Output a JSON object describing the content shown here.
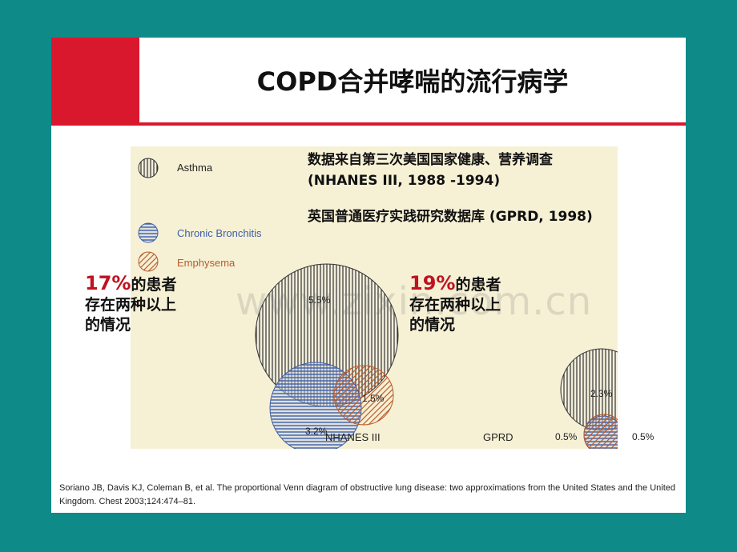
{
  "title": "COPD合并哮喘的流行病学",
  "legend": [
    {
      "label": "Asthma"
    },
    {
      "label": "Chronic Bronchitis"
    },
    {
      "label": "Emphysema"
    }
  ],
  "colors": {
    "asthma": "#333333",
    "bronchitis": "#3e5fa8",
    "emphysema": "#b85a2a",
    "accent": "#c0121f",
    "teal": "#0e8a89"
  },
  "sources": {
    "line1": "数据来自第三次美国国家健康、营养调查",
    "line2": "(NHANES III, 1988 -1994)",
    "line3": "英国普通医疗实践研究数据库  (GPRD, 1998)"
  },
  "nhanes": {
    "label": "NHANES III",
    "asthma_pct": "5.5%",
    "bronchitis_pct": "3.2%",
    "emphysema_pct": "1.5%",
    "callout_pct": "17%",
    "callout_line1": "的患者",
    "callout_line2": "存在两种以上",
    "callout_line3": "的情况"
  },
  "gprd": {
    "label": "GPRD",
    "asthma_pct": "2.3%",
    "bronchitis_pct": "0.5%",
    "emphysema_pct": "0.5%",
    "callout_pct": "19%",
    "callout_line1": "的患者",
    "callout_line2": "存在两种以上",
    "callout_line3": "的情况"
  },
  "watermark": "www.zixin.com.cn",
  "citation": "Soriano JB, Davis KJ, Coleman B, et al. The proportional Venn diagram of obstructive lung disease: two approximations from the United States and the United Kingdom. Chest 2003;124:474–81."
}
